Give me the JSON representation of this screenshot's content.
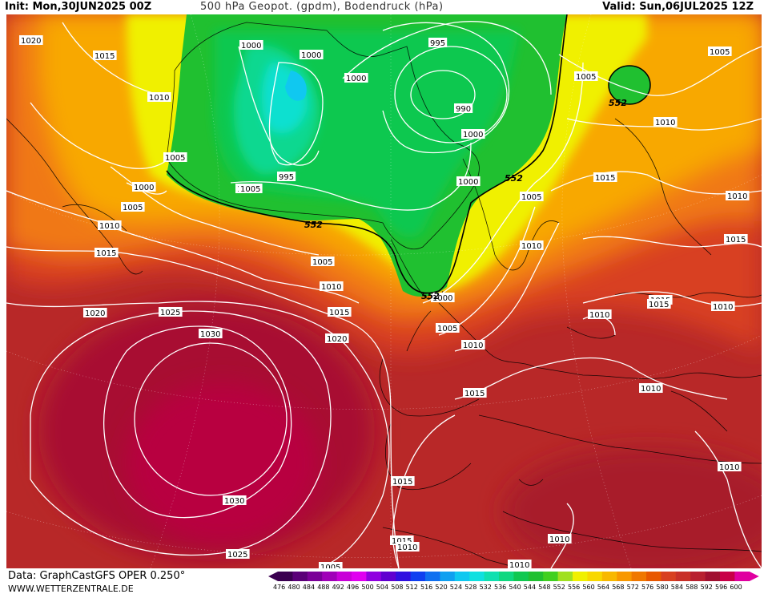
{
  "header": {
    "init": "Init: Mon,30JUN2025 00Z",
    "title": "500 hPa Geopot. (gpdm), Bodendruck (hPa)",
    "valid": "Valid: Sun,06JUL2025 12Z"
  },
  "footer": {
    "data_source": "Data: GraphCastGFS OPER 0.250°",
    "website": "WWW.WETTERZENTRALE.DE"
  },
  "legend": {
    "ticks": [
      "476",
      "480",
      "484",
      "488",
      "492",
      "496",
      "500",
      "504",
      "508",
      "512",
      "516",
      "520",
      "524",
      "528",
      "532",
      "536",
      "540",
      "544",
      "548",
      "552",
      "556",
      "560",
      "564",
      "568",
      "572",
      "576",
      "580",
      "584",
      "588",
      "592",
      "596",
      "600"
    ],
    "colors": [
      "#3a0050",
      "#5a0078",
      "#7a0098",
      "#a000b8",
      "#c800d8",
      "#e000f0",
      "#9000e0",
      "#6000d0",
      "#3010e0",
      "#1040f0",
      "#1070f0",
      "#10a0f0",
      "#10c8f0",
      "#10e0e0",
      "#10e0b0",
      "#10d880",
      "#10c850",
      "#20c030",
      "#40d020",
      "#a0e020",
      "#f0f000",
      "#f8d800",
      "#f8b800",
      "#f89800",
      "#f07800",
      "#e85800",
      "#d84020",
      "#c83028",
      "#b82030",
      "#a01030",
      "#c80048",
      "#e000a0"
    ]
  },
  "isobar_labels": [
    "1020",
    "1015",
    "1010",
    "1005",
    "1000",
    "1005",
    "1010",
    "1015",
    "1020",
    "1025",
    "1030",
    "1030",
    "1025",
    "1020",
    "1015",
    "1010",
    "1005",
    "1000",
    "995",
    "1000",
    "1000",
    "1000",
    "995",
    "990",
    "1000",
    "1000",
    "1005",
    "1010",
    "1005",
    "1010",
    "1015",
    "1010",
    "1015",
    "1015",
    "1010",
    "1010",
    "1005",
    "1010",
    "1010",
    "1015",
    "1010",
    "1015",
    "1015",
    "1010",
    "1010",
    "1015",
    "1005",
    "1010",
    "1005",
    "1000",
    "1005"
  ],
  "geopot_labels": [
    "552",
    "552",
    "552",
    "552"
  ]
}
